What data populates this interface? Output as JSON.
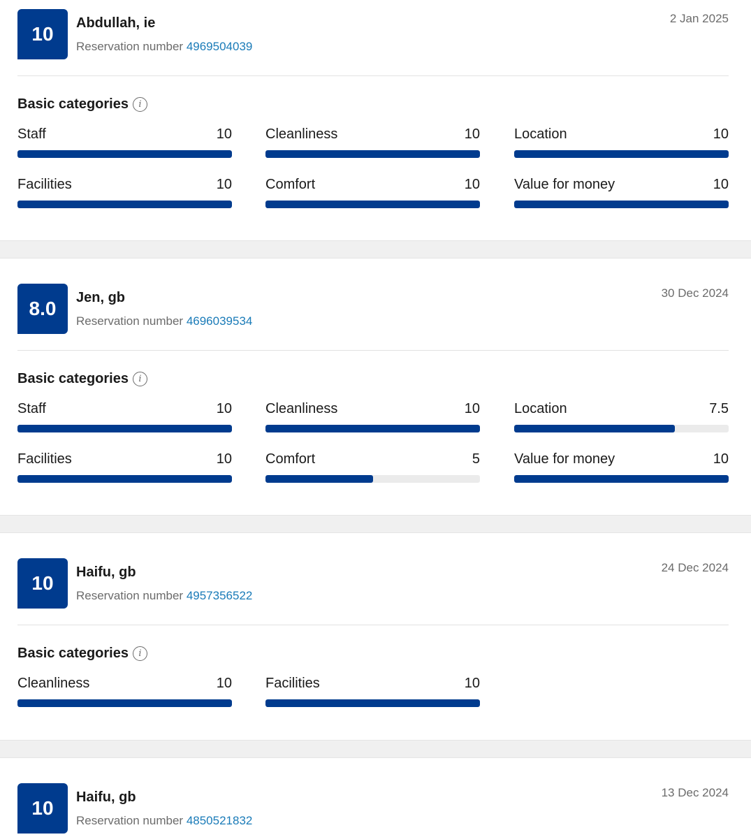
{
  "reviews": [
    {
      "score": "10",
      "name": "Abdullah, ie",
      "reservation_label": "Reservation number",
      "reservation_number": "4969504039",
      "date": "2 Jan 2025",
      "categories_heading": "Basic categories",
      "info_icon": "i",
      "categories": [
        {
          "label": "Staff",
          "value": "10",
          "fraction": 1.0
        },
        {
          "label": "Cleanliness",
          "value": "10",
          "fraction": 1.0
        },
        {
          "label": "Location",
          "value": "10",
          "fraction": 1.0
        },
        {
          "label": "Facilities",
          "value": "10",
          "fraction": 1.0
        },
        {
          "label": "Comfort",
          "value": "10",
          "fraction": 1.0
        },
        {
          "label": "Value for money",
          "value": "10",
          "fraction": 1.0
        }
      ]
    },
    {
      "score": "8.0",
      "name": "Jen, gb",
      "reservation_label": "Reservation number",
      "reservation_number": "4696039534",
      "date": "30 Dec 2024",
      "categories_heading": "Basic categories",
      "info_icon": "i",
      "categories": [
        {
          "label": "Staff",
          "value": "10",
          "fraction": 1.0
        },
        {
          "label": "Cleanliness",
          "value": "10",
          "fraction": 1.0
        },
        {
          "label": "Location",
          "value": "7.5",
          "fraction": 0.75
        },
        {
          "label": "Facilities",
          "value": "10",
          "fraction": 1.0
        },
        {
          "label": "Comfort",
          "value": "5",
          "fraction": 0.5
        },
        {
          "label": "Value for money",
          "value": "10",
          "fraction": 1.0
        }
      ]
    },
    {
      "score": "10",
      "name": "Haifu, gb",
      "reservation_label": "Reservation number",
      "reservation_number": "4957356522",
      "date": "24 Dec 2024",
      "categories_heading": "Basic categories",
      "info_icon": "i",
      "categories": [
        {
          "label": "Cleanliness",
          "value": "10",
          "fraction": 1.0
        },
        {
          "label": "Facilities",
          "value": "10",
          "fraction": 1.0
        }
      ]
    },
    {
      "score": "10",
      "name": "Haifu, gb",
      "reservation_label": "Reservation number",
      "reservation_number": "4850521832",
      "date": "13 Dec 2024"
    }
  ],
  "colors": {
    "badge": "#003b8e",
    "bar_fill": "#003b8e",
    "bar_track": "#ebebeb",
    "link": "#1a7bb8",
    "separator": "#f0f0f0"
  }
}
